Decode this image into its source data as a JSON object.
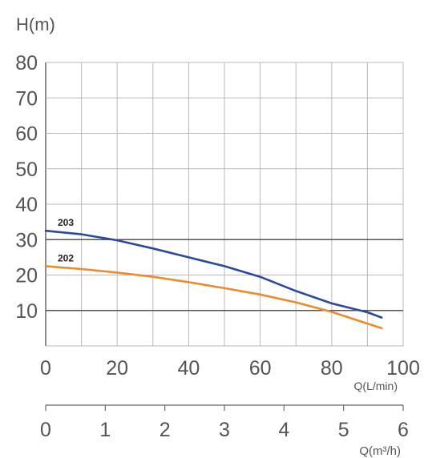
{
  "chart_data": {
    "type": "line",
    "ylabel": "H(m)",
    "xlabel": "Q(L/min)",
    "x2label": "Q(m³/h)",
    "xlim": [
      0,
      100
    ],
    "ylim": [
      0,
      80
    ],
    "x2lim": [
      0,
      6
    ],
    "y_ticks": [
      "10",
      "20",
      "30",
      "40",
      "50",
      "60",
      "70",
      "80"
    ],
    "x_ticks": [
      "0",
      "20",
      "40",
      "60",
      "80",
      "100"
    ],
    "x2_ticks": [
      "0",
      "1",
      "2",
      "3",
      "4",
      "5",
      "6"
    ],
    "grid": true,
    "emphasized_gridlines_y": [
      10,
      30
    ],
    "series": [
      {
        "name": "203",
        "color": "#2a4a9c",
        "x": [
          0,
          10,
          20,
          30,
          40,
          50,
          60,
          70,
          80,
          90,
          94
        ],
        "y": [
          32.5,
          31.5,
          29.8,
          27.5,
          25,
          22.5,
          19.5,
          15.5,
          12,
          9.5,
          8
        ]
      },
      {
        "name": "202",
        "color": "#ee8a2c",
        "x": [
          0,
          10,
          20,
          30,
          40,
          50,
          60,
          70,
          80,
          90,
          94
        ],
        "y": [
          22.5,
          21.7,
          20.7,
          19.5,
          18,
          16.3,
          14.5,
          12.3,
          9.6,
          6.3,
          5
        ]
      }
    ]
  }
}
